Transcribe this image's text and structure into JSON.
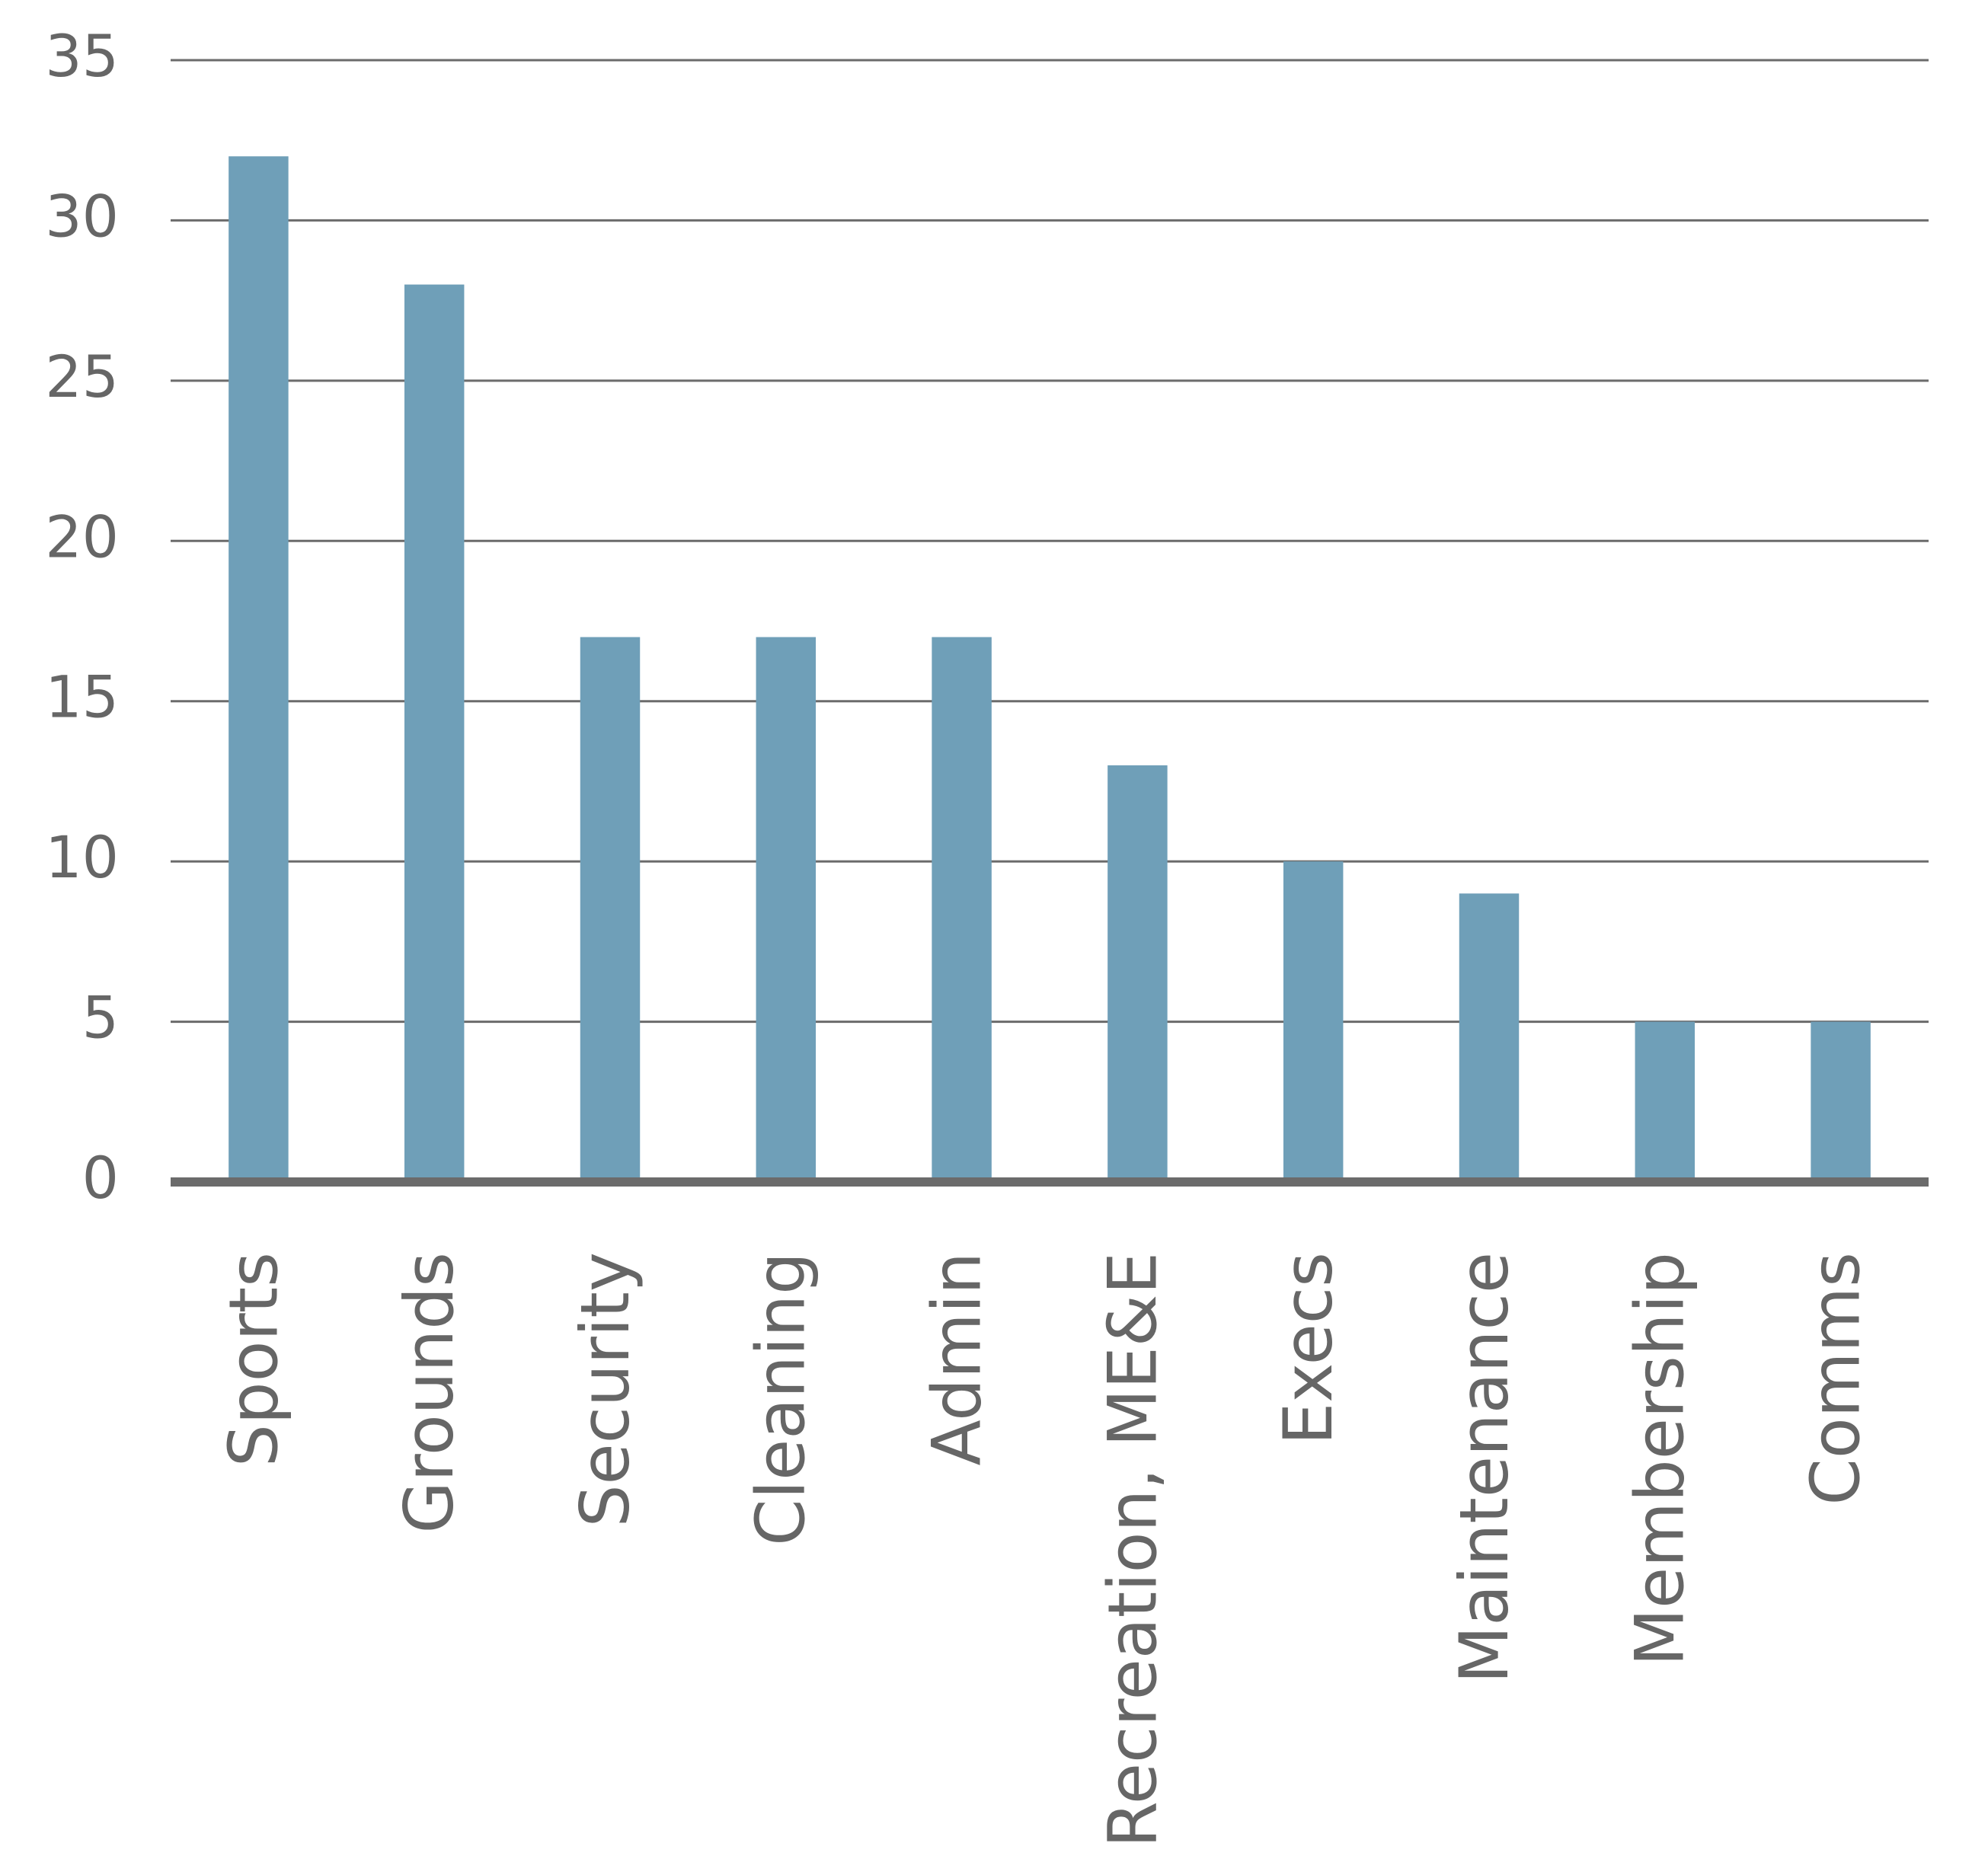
{
  "chart_data": {
    "type": "bar",
    "categories": [
      "Sports",
      "Grounds",
      "Security",
      "Cleaning",
      "Admin",
      "Recreation, ME&E",
      "Execs",
      "Maintenance",
      "Membership",
      "Comms"
    ],
    "values": [
      32,
      28,
      17,
      17,
      17,
      13,
      10,
      9,
      5,
      5
    ],
    "color": "#6f9fb8",
    "ylim": [
      0,
      35
    ],
    "yticks": [
      0,
      5,
      10,
      15,
      20,
      25,
      30,
      35
    ],
    "grid": true
  }
}
